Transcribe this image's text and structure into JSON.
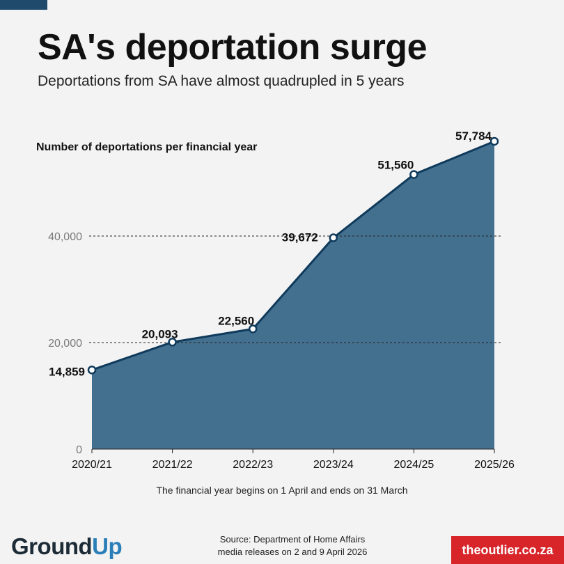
{
  "header": {
    "title": "SA's deportation surge",
    "subtitle": "Deportations from SA have almost quadrupled in 5 years"
  },
  "chart_data": {
    "type": "area",
    "title": "SA's deportation surge",
    "subtitle": "Deportations from SA have almost quadrupled in 5 years",
    "ylabel": "Number of deportations per financial year",
    "xlabel": "",
    "categories": [
      "2020/21",
      "2021/22",
      "2022/23",
      "2023/24",
      "2024/25",
      "2025/26"
    ],
    "values": [
      14859,
      20093,
      22560,
      39672,
      51560,
      57784
    ],
    "data_labels": [
      "14,859",
      "20,093",
      "22,560",
      "39,672",
      "51,560",
      "57,784"
    ],
    "yticks": [
      0,
      20000,
      40000
    ],
    "ytick_labels": [
      "0",
      "20,000",
      "40,000"
    ],
    "ylim": [
      0,
      60000
    ],
    "grid": "dashed horizontal at 20,000 and 40,000",
    "colors": {
      "fill": "#44708f",
      "line": "#0f3a5c",
      "marker_fill": "#ffffff"
    }
  },
  "footer": {
    "note": "The financial year begins on 1 April and ends on 31 March",
    "source_line1": "Source: Department of Home Affairs",
    "source_line2": "media releases on 2 and 9 April 2026",
    "logo_left_part1": "Gr",
    "logo_left_o": "o",
    "logo_left_part2": "und",
    "logo_left_up": "Up",
    "logo_right": "theoutlier.co.za"
  }
}
